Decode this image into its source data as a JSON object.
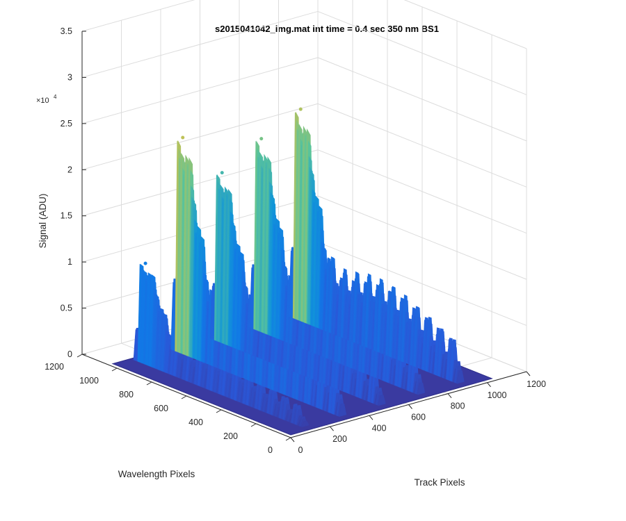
{
  "chart_data": {
    "type": "surface",
    "title": "s2015041042_img.mat int time = 0.4 sec  350 nm BS1",
    "xlabel": "Track Pixels",
    "ylabel": "Wavelength Pixels",
    "zlabel": "Signal (ADU)",
    "z_exponent_label": "×10",
    "z_exponent_power": "4",
    "x_range": [
      0,
      1200
    ],
    "y_range": [
      0,
      1200
    ],
    "z_range": [
      0,
      35000
    ],
    "x_ticks": [
      "0",
      "200",
      "400",
      "600",
      "800",
      "1000",
      "1200"
    ],
    "y_ticks": [
      "0",
      "200",
      "400",
      "600",
      "800",
      "1000",
      "1200"
    ],
    "z_ticks": [
      "0",
      "0.5",
      "1",
      "1.5",
      "2",
      "2.5",
      "3",
      "3.5"
    ],
    "z_tick_values": [
      0,
      5000,
      10000,
      15000,
      20000,
      25000,
      30000,
      35000
    ],
    "grid": true,
    "colormap": "parula",
    "colors": {
      "floor": "#3a3aa0",
      "low": "#2a58d8",
      "mid": "#1296d8",
      "high": "#5bc49a",
      "peak": "#e8c03a"
    },
    "tracks": [
      {
        "track_px": 110,
        "peak_row_signal": 2300,
        "max_signal": 11000
      },
      {
        "track_px": 300,
        "peak_row_signal": 4500,
        "max_signal": 23500
      },
      {
        "track_px": 500,
        "peak_row_signal": 3700,
        "max_signal": 18500
      },
      {
        "track_px": 700,
        "peak_row_signal": 4200,
        "max_signal": 21000
      },
      {
        "track_px": 900,
        "peak_row_signal": 4600,
        "max_signal": 23000
      }
    ],
    "track_wavelength_range": [
      0,
      1024
    ],
    "peak_wavelength_px": 960
  }
}
